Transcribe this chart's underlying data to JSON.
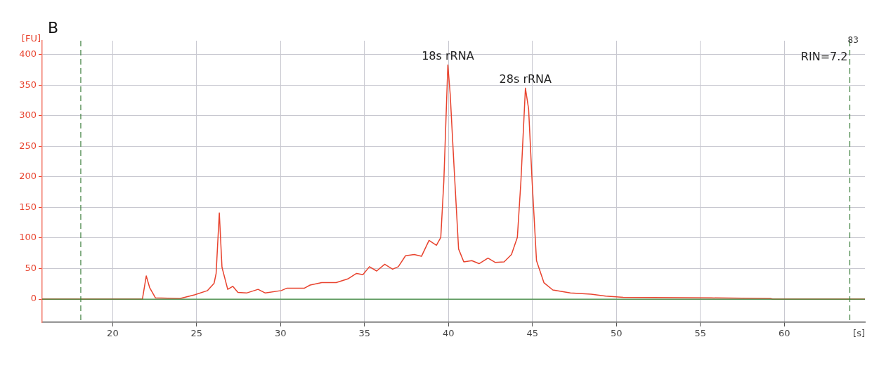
{
  "chart_data": {
    "type": "line",
    "title": "B",
    "xlabel": "[s]",
    "ylabel": "[FU]",
    "xlim": [
      15.8,
      64.8
    ],
    "xticks": [
      20,
      25,
      30,
      35,
      40,
      45,
      50,
      55,
      60
    ],
    "ylim": [
      -37.8,
      422.5
    ],
    "yticks": [
      0,
      50,
      100,
      150,
      200,
      250,
      300,
      350,
      400
    ],
    "grid": true,
    "legend": false,
    "marker": "none",
    "line_style": "solid",
    "series": [
      {
        "color": "#e8432e",
        "x": [
          15.8,
          21.77,
          22.0,
          22.2,
          22.55,
          24.0,
          24.87,
          25.65,
          26.04,
          26.16,
          26.35,
          26.51,
          26.85,
          27.15,
          27.46,
          27.97,
          28.66,
          29.09,
          30.04,
          30.38,
          31.42,
          31.76,
          32.45,
          33.31,
          34.0,
          34.52,
          34.9,
          35.29,
          35.72,
          36.2,
          36.67,
          37.01,
          37.44,
          37.96,
          38.39,
          38.84,
          39.28,
          39.54,
          39.72,
          39.96,
          40.1,
          40.33,
          40.6,
          40.91,
          41.39,
          41.82,
          42.35,
          42.79,
          43.31,
          43.75,
          44.1,
          44.31,
          44.58,
          44.77,
          44.98,
          45.24,
          45.68,
          46.21,
          47.26,
          48.49,
          49.36,
          50.41,
          55.67,
          59.18,
          59.3,
          64.8
        ],
        "values": [
          0,
          0,
          38,
          19,
          2,
          1,
          7,
          14,
          26,
          42,
          141,
          52,
          16,
          21,
          11,
          10,
          16,
          10,
          14,
          18,
          18,
          23,
          27,
          27,
          33,
          42,
          40,
          53,
          46,
          57,
          49,
          53,
          71,
          73,
          70,
          96,
          88,
          101,
          192,
          383,
          335,
          216,
          82,
          61,
          63,
          58,
          67,
          60,
          61,
          73,
          101,
          192,
          345,
          311,
          192,
          63,
          27,
          15,
          10,
          8,
          5,
          3,
          2,
          1,
          0,
          0
        ]
      }
    ],
    "ref_lines": [
      {
        "axis": "x",
        "value": 18.1,
        "color": "#3a7d3a",
        "line_style": "dashed"
      },
      {
        "axis": "x",
        "value": 63.9,
        "color": "#3a7d3a",
        "line_style": "dashed"
      },
      {
        "axis": "y",
        "value": 0,
        "color": "#3a8a3a",
        "line_style": "solid"
      }
    ],
    "annotations": [
      {
        "text": "18s rRNA",
        "x": 39.96,
        "y": 383
      },
      {
        "text": "28s rRNA",
        "x": 44.58,
        "y": 345
      },
      "83",
      "RIN=7.2"
    ]
  }
}
